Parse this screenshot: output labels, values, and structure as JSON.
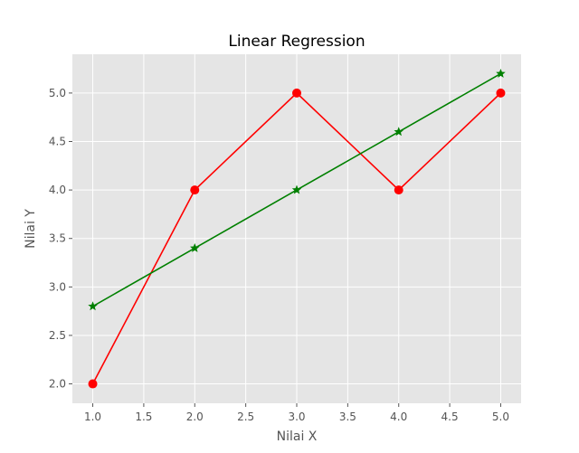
{
  "chart_data": {
    "type": "line",
    "title": "Linear Regression",
    "xlabel": "Nilai X",
    "ylabel": "Nilai Y",
    "xlim": [
      0.8,
      5.2
    ],
    "ylim": [
      1.8,
      5.4
    ],
    "x_ticks": [
      "1.0",
      "1.5",
      "2.0",
      "2.5",
      "3.0",
      "3.5",
      "4.0",
      "4.5",
      "5.0"
    ],
    "y_ticks": [
      "2.0",
      "2.5",
      "3.0",
      "3.5",
      "4.0",
      "4.5",
      "5.0"
    ],
    "grid": true,
    "background": "#e5e5e5",
    "series": [
      {
        "x": [
          1,
          2,
          3,
          4,
          5
        ],
        "y": [
          2,
          4,
          5,
          4,
          5
        ],
        "color": "#ff0000",
        "marker": "circle"
      },
      {
        "x": [
          1,
          2,
          3,
          4,
          5
        ],
        "y": [
          2.8,
          3.4,
          4.0,
          4.6,
          5.2
        ],
        "color": "#008000",
        "marker": "star"
      }
    ]
  }
}
